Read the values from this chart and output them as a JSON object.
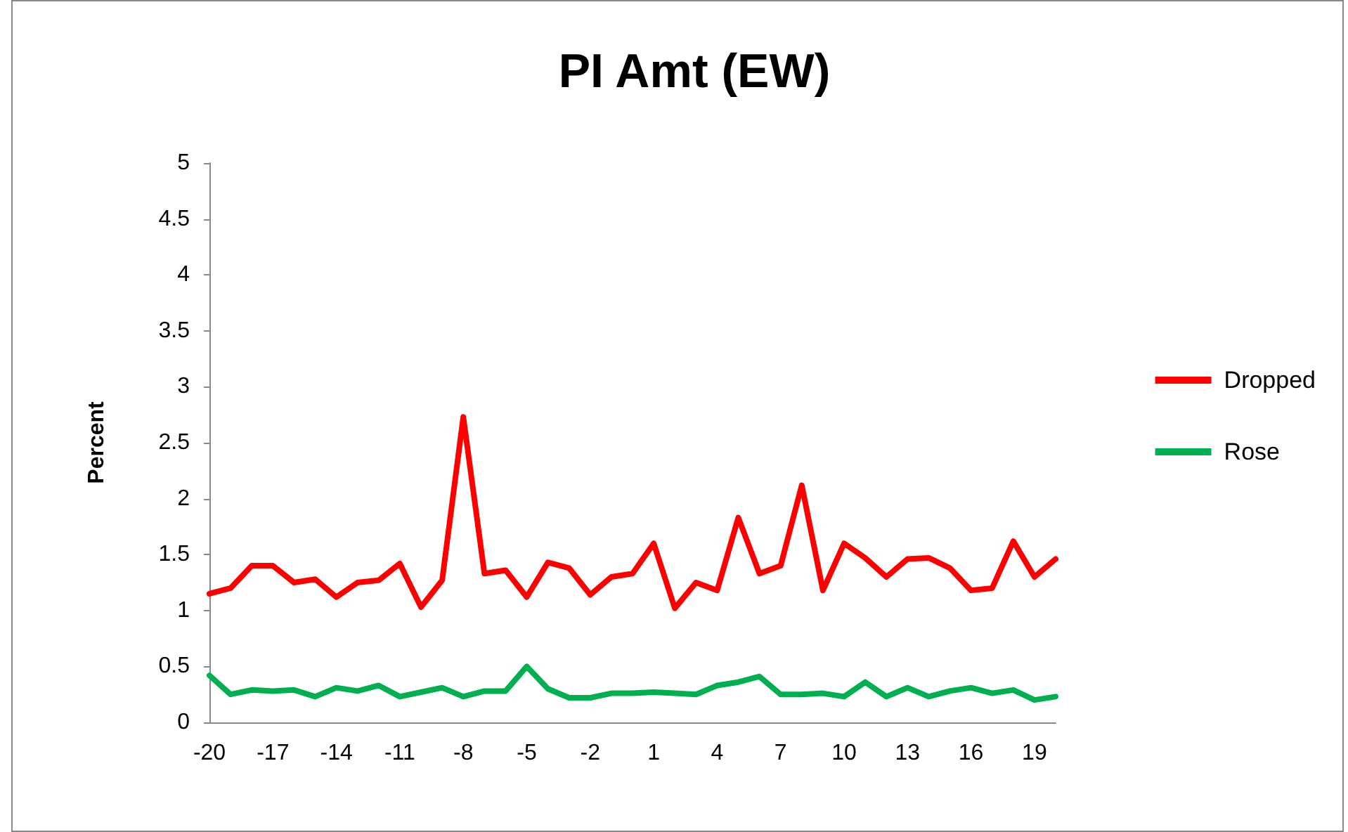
{
  "chart_data": {
    "type": "line",
    "title": "PI Amt (EW)",
    "ylabel": "Percent",
    "categories": [
      "-20",
      null,
      null,
      "-17",
      null,
      null,
      "-14",
      null,
      null,
      "-11",
      null,
      null,
      "-8",
      null,
      null,
      "-5",
      null,
      null,
      "-2",
      null,
      null,
      "1",
      null,
      null,
      "4",
      null,
      null,
      "7",
      null,
      null,
      "10",
      null,
      null,
      "13",
      null,
      null,
      "16",
      null,
      null,
      "19",
      null
    ],
    "series": [
      {
        "name": "Dropped",
        "color": "#ff0000",
        "values": [
          1.15,
          1.2,
          1.4,
          1.4,
          1.25,
          1.28,
          1.12,
          1.25,
          1.27,
          1.42,
          1.03,
          1.27,
          2.73,
          1.33,
          1.36,
          1.12,
          1.43,
          1.38,
          1.14,
          1.3,
          1.33,
          1.6,
          1.02,
          1.25,
          1.18,
          1.83,
          1.33,
          1.4,
          2.12,
          1.18,
          1.6,
          1.47,
          1.3,
          1.46,
          1.47,
          1.38,
          1.18,
          1.2,
          1.62,
          1.3,
          1.46
        ]
      },
      {
        "name": "Rose",
        "color": "#00b050",
        "values": [
          0.42,
          0.25,
          0.29,
          0.28,
          0.29,
          0.23,
          0.31,
          0.28,
          0.33,
          0.23,
          0.27,
          0.31,
          0.23,
          0.28,
          0.28,
          0.5,
          0.3,
          0.22,
          0.22,
          0.26,
          0.26,
          0.27,
          0.26,
          0.25,
          0.33,
          0.36,
          0.41,
          0.25,
          0.25,
          0.26,
          0.23,
          0.36,
          0.23,
          0.31,
          0.23,
          0.28,
          0.31,
          0.26,
          0.29,
          0.2,
          0.23
        ]
      }
    ],
    "ylim": [
      0,
      5
    ],
    "yticks": [
      0,
      0.5,
      1,
      1.5,
      2,
      2.5,
      3,
      3.5,
      4,
      4.5,
      5
    ],
    "grid": false,
    "legend": "right",
    "marker": "none",
    "line_style": "solid"
  }
}
